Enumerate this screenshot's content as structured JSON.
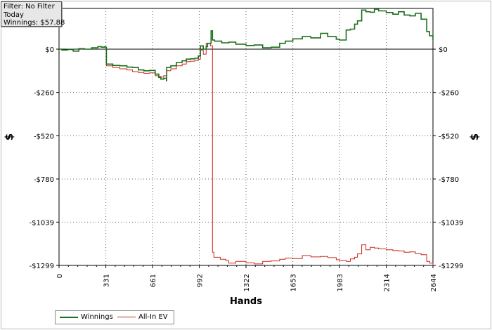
{
  "filter_box": {
    "line1": "Filter: No Filter",
    "line2": "Today",
    "line3": "Winnings: $57.88"
  },
  "colors": {
    "winnings": "#1a6e1a",
    "allin_ev": "#c8281e",
    "grid": "#606060",
    "zero_line": "#000000"
  },
  "chart_data": {
    "type": "line",
    "xlabel": "Hands",
    "ylabel": "$",
    "xlim": [
      0,
      2644
    ],
    "ylim": [
      -1299,
      120
    ],
    "x_ticks": [
      0,
      331,
      661,
      992,
      1322,
      1653,
      1983,
      2314,
      2644
    ],
    "x_tick_labels": [
      "0",
      "331",
      "661",
      "992",
      "1322",
      "1653",
      "1983",
      "2314",
      "2644"
    ],
    "y_ticks": [
      0,
      -260,
      -520,
      -780,
      -1039,
      -1299
    ],
    "y_tick_labels": [
      "$0",
      "-$260",
      "-$520",
      "-$780",
      "-$1039",
      "-$1299"
    ],
    "grid": true,
    "legend_position": "bottom-left",
    "series": [
      {
        "name": "Winnings",
        "x": [
          0,
          20,
          60,
          100,
          140,
          180,
          230,
          275,
          300,
          320,
          331,
          335,
          380,
          430,
          480,
          520,
          561,
          600,
          640,
          680,
          705,
          720,
          740,
          760,
          761,
          790,
          830,
          870,
          900,
          930,
          960,
          985,
          1000,
          1020,
          1040,
          1050,
          1075,
          1085,
          1100,
          1150,
          1200,
          1250,
          1322,
          1380,
          1440,
          1500,
          1560,
          1600,
          1653,
          1720,
          1780,
          1850,
          1900,
          1960,
          1983,
          2030,
          2060,
          2090,
          2110,
          2140,
          2170,
          2200,
          2230,
          2260,
          2314,
          2360,
          2400,
          2440,
          2480,
          2520,
          2560,
          2600,
          2620,
          2644
        ],
        "y": [
          0,
          -5,
          -2,
          -12,
          3,
          0,
          8,
          15,
          12,
          14,
          10,
          -90,
          -98,
          -100,
          -108,
          -110,
          -125,
          -130,
          -128,
          -150,
          -170,
          -180,
          -175,
          -190,
          -110,
          -100,
          -80,
          -70,
          -60,
          -58,
          -55,
          -40,
          20,
          0,
          15,
          35,
          110,
          55,
          48,
          38,
          42,
          30,
          22,
          25,
          8,
          12,
          35,
          48,
          62,
          75,
          68,
          95,
          75,
          60,
          55,
          115,
          120,
          150,
          170,
          235,
          225,
          222,
          240,
          230,
          220,
          210,
          225,
          205,
          200,
          215,
          180,
          105,
          80,
          55
        ]
      },
      {
        "name": "All-In EV",
        "x": [
          0,
          20,
          60,
          100,
          140,
          180,
          230,
          275,
          300,
          320,
          331,
          335,
          380,
          430,
          480,
          520,
          561,
          600,
          640,
          680,
          705,
          720,
          740,
          760,
          761,
          790,
          830,
          870,
          900,
          930,
          960,
          985,
          1000,
          1020,
          1040,
          1070,
          1085,
          1095,
          1140,
          1180,
          1200,
          1250,
          1322,
          1380,
          1440,
          1500,
          1560,
          1600,
          1653,
          1720,
          1780,
          1850,
          1900,
          1960,
          1983,
          2030,
          2060,
          2090,
          2110,
          2140,
          2170,
          2200,
          2230,
          2260,
          2314,
          2360,
          2400,
          2440,
          2480,
          2520,
          2560,
          2600,
          2620,
          2644
        ],
        "y": [
          0,
          -5,
          -2,
          -12,
          3,
          0,
          8,
          15,
          12,
          14,
          8,
          -100,
          -110,
          -118,
          -125,
          -135,
          -140,
          -145,
          -142,
          -160,
          -165,
          -168,
          -160,
          -170,
          -130,
          -118,
          -100,
          -90,
          -75,
          -72,
          -68,
          -60,
          -5,
          -30,
          35,
          20,
          -1220,
          -1250,
          -1262,
          -1270,
          -1285,
          -1275,
          -1283,
          -1290,
          -1275,
          -1272,
          -1262,
          -1255,
          -1258,
          -1240,
          -1248,
          -1245,
          -1252,
          -1265,
          -1270,
          -1275,
          -1260,
          -1250,
          -1230,
          -1175,
          -1205,
          -1190,
          -1195,
          -1200,
          -1205,
          -1210,
          -1212,
          -1220,
          -1218,
          -1228,
          -1235,
          -1275,
          -1285,
          -1299
        ]
      }
    ],
    "legend": [
      "Winnings",
      "All-In EV"
    ]
  }
}
